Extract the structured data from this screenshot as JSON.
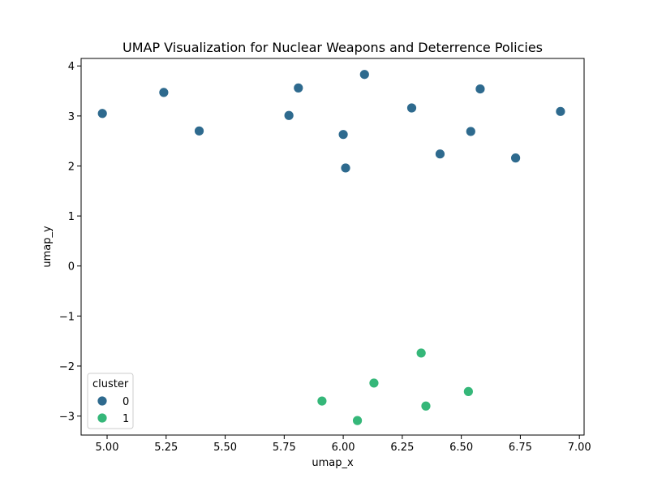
{
  "chart_data": {
    "type": "scatter",
    "title": "UMAP Visualization for Nuclear Weapons and Deterrence Policies",
    "xlabel": "umap_x",
    "ylabel": "umap_y",
    "xlim": [
      4.89,
      7.02
    ],
    "ylim": [
      -3.38,
      4.15
    ],
    "xticks": [
      5.0,
      5.25,
      5.5,
      5.75,
      6.0,
      6.25,
      6.5,
      6.75,
      7.0
    ],
    "xtick_labels": [
      "5.00",
      "5.25",
      "5.50",
      "5.75",
      "6.00",
      "6.25",
      "6.50",
      "6.75",
      "7.00"
    ],
    "yticks": [
      -3,
      -2,
      -1,
      0,
      1,
      2,
      3,
      4
    ],
    "ytick_labels": [
      "−3",
      "−2",
      "−1",
      "0",
      "1",
      "2",
      "3",
      "4"
    ],
    "grid": false,
    "legend": {
      "title": "cluster",
      "placement": "lower-left"
    },
    "series": [
      {
        "name": "0",
        "color": "#2e6a8e",
        "points": [
          [
            4.98,
            3.05
          ],
          [
            5.24,
            3.47
          ],
          [
            5.39,
            2.7
          ],
          [
            5.77,
            3.01
          ],
          [
            5.81,
            3.56
          ],
          [
            6.0,
            2.63
          ],
          [
            6.01,
            1.96
          ],
          [
            6.09,
            3.83
          ],
          [
            6.29,
            3.16
          ],
          [
            6.41,
            2.24
          ],
          [
            6.54,
            2.69
          ],
          [
            6.58,
            3.54
          ],
          [
            6.73,
            2.16
          ],
          [
            6.92,
            3.09
          ]
        ]
      },
      {
        "name": "1",
        "color": "#35b779",
        "points": [
          [
            5.91,
            -2.7
          ],
          [
            6.06,
            -3.09
          ],
          [
            6.13,
            -2.34
          ],
          [
            6.33,
            -1.74
          ],
          [
            6.35,
            -2.8
          ],
          [
            6.53,
            -2.51
          ]
        ]
      }
    ]
  }
}
